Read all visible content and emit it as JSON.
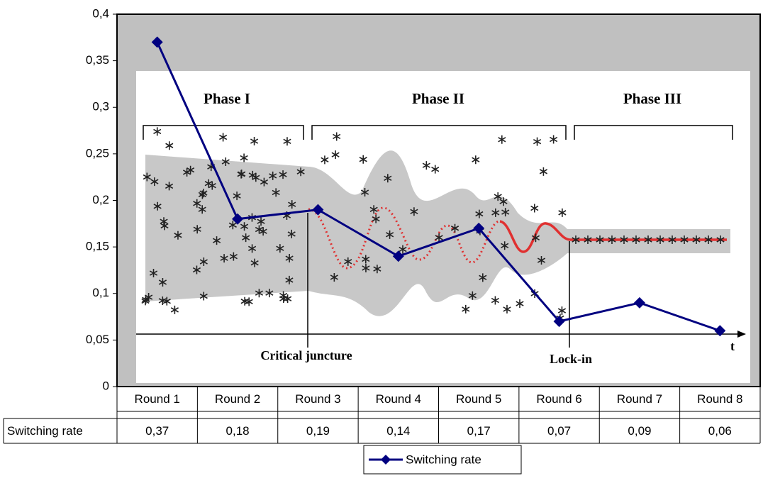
{
  "chart_data": {
    "type": "line",
    "categories": [
      "Round 1",
      "Round 2",
      "Round 3",
      "Round 4",
      "Round 5",
      "Round 6",
      "Round 7",
      "Round 8"
    ],
    "series": [
      {
        "name": "Switching rate",
        "color": "#000080",
        "values": [
          0.37,
          0.18,
          0.19,
          0.14,
          0.17,
          0.07,
          0.09,
          0.06
        ],
        "value_labels": [
          "0,37",
          "0,18",
          "0,19",
          "0,14",
          "0,17",
          "0,07",
          "0,09",
          "0,06"
        ]
      }
    ],
    "ylim": [
      0,
      0.4
    ],
    "yticks": [
      0,
      {
        "value": 0.05,
        "label": "0,05"
      },
      {
        "value": 0.1,
        "label": "0,1"
      },
      {
        "value": 0.15,
        "label": "0,15"
      },
      {
        "value": 0.2,
        "label": "0,2"
      },
      {
        "value": 0.25,
        "label": "0,25"
      },
      {
        "value": 0.3,
        "label": "0,3"
      },
      {
        "value": 0.35,
        "label": "0,35"
      },
      {
        "value": 0.4,
        "label": "0,4"
      }
    ],
    "grid": false,
    "legend": "bottom",
    "annotations": [
      "Phase I",
      "Phase II",
      "Phase III",
      "Critical juncture",
      "Lock-in",
      "t"
    ]
  }
}
